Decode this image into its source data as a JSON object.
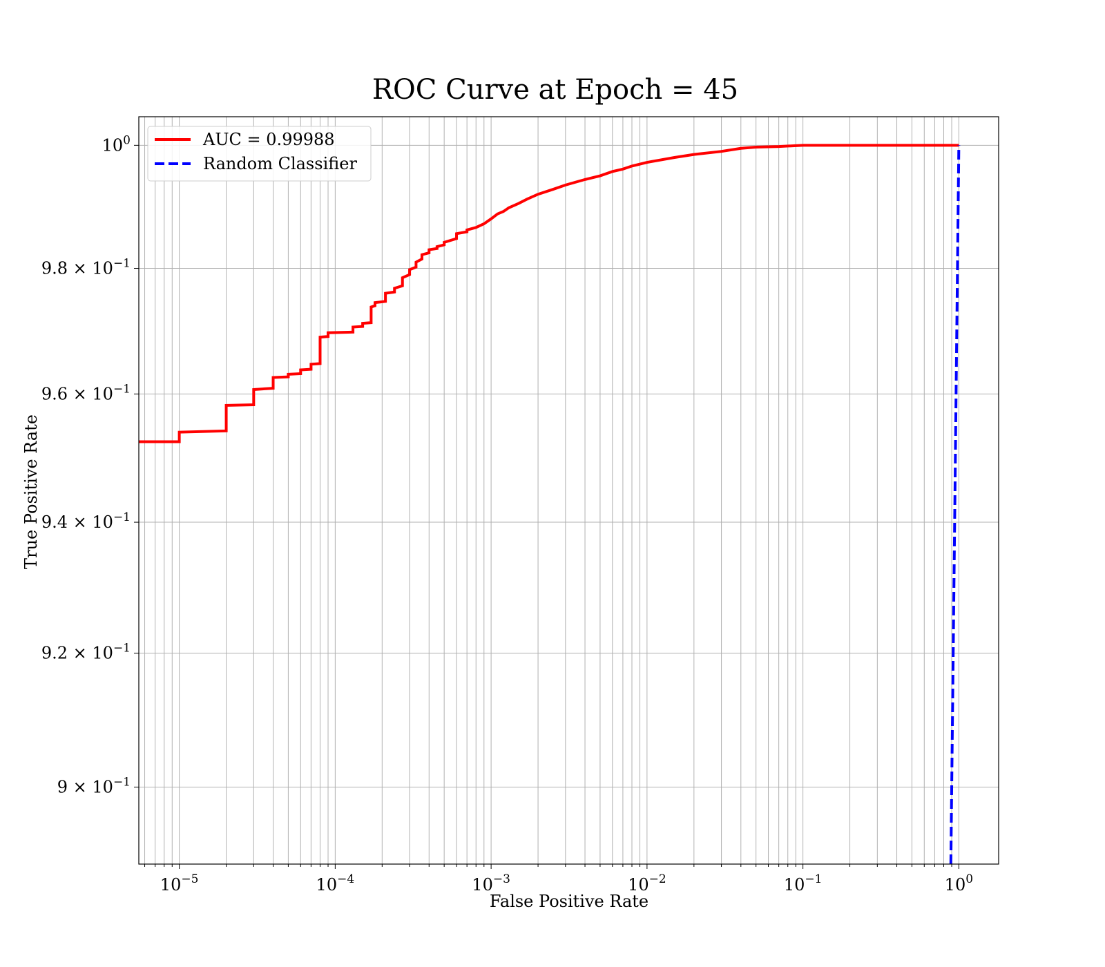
{
  "chart_data": {
    "type": "line",
    "title": "ROC Curve at Epoch = 45",
    "xlabel": "False Positive Rate",
    "ylabel": "True Positive Rate",
    "xscale": "log",
    "yscale": "log",
    "xlim": [
      5.5e-06,
      1.8
    ],
    "ylim": [
      0.8887,
      1.0047
    ],
    "grid": true,
    "legend_position": "top-left",
    "x_ticks": [
      {
        "value": 1e-05,
        "base": "10",
        "exp": "−5"
      },
      {
        "value": 0.0001,
        "base": "10",
        "exp": "−4"
      },
      {
        "value": 0.001,
        "base": "10",
        "exp": "−3"
      },
      {
        "value": 0.01,
        "base": "10",
        "exp": "−2"
      },
      {
        "value": 0.1,
        "base": "10",
        "exp": "−1"
      },
      {
        "value": 1,
        "base": "10",
        "exp": "0"
      }
    ],
    "y_ticks": [
      {
        "value": 1.0,
        "base": "10",
        "exp": "0"
      },
      {
        "value": 0.98,
        "base": "9.8 × 10",
        "exp": "−1"
      },
      {
        "value": 0.96,
        "base": "9.6 × 10",
        "exp": "−1"
      },
      {
        "value": 0.94,
        "base": "9.4 × 10",
        "exp": "−1"
      },
      {
        "value": 0.92,
        "base": "9.2 × 10",
        "exp": "−1"
      },
      {
        "value": 0.9,
        "base": "9 × 10",
        "exp": "−1"
      }
    ],
    "series": [
      {
        "name": "AUC = 0.99988",
        "color": "#ff0000",
        "style": "solid",
        "x": [
          5.5e-06,
          1e-05,
          1e-05,
          2e-05,
          2e-05,
          3e-05,
          3e-05,
          4e-05,
          4e-05,
          5e-05,
          5e-05,
          6e-05,
          6e-05,
          7e-05,
          7e-05,
          8e-05,
          8e-05,
          9e-05,
          9e-05,
          0.00013,
          0.00013,
          0.00015,
          0.00015,
          0.00017,
          0.00017,
          0.00018,
          0.00018,
          0.00021,
          0.00021,
          0.00024,
          0.00024,
          0.00027,
          0.00027,
          0.0003,
          0.0003,
          0.00033,
          0.00033,
          0.00036,
          0.00036,
          0.0004,
          0.0004,
          0.00045,
          0.00045,
          0.0005,
          0.0005,
          0.0006,
          0.0006,
          0.0007,
          0.0007,
          0.0008,
          0.0009,
          0.001,
          0.0011,
          0.0012,
          0.0013,
          0.0015,
          0.0017,
          0.002,
          0.0025,
          0.003,
          0.004,
          0.005,
          0.006,
          0.007,
          0.008,
          0.01,
          0.015,
          0.02,
          0.03,
          0.04,
          0.05,
          0.07,
          0.1,
          1.0
        ],
        "y": [
          0.9525,
          0.9525,
          0.954,
          0.9542,
          0.9582,
          0.9583,
          0.9607,
          0.9609,
          0.9626,
          0.9627,
          0.9631,
          0.9632,
          0.9638,
          0.9639,
          0.9647,
          0.9648,
          0.969,
          0.9691,
          0.9697,
          0.9698,
          0.9706,
          0.9707,
          0.9712,
          0.9713,
          0.9738,
          0.974,
          0.9745,
          0.9747,
          0.976,
          0.9762,
          0.9768,
          0.9772,
          0.9785,
          0.979,
          0.9798,
          0.9802,
          0.981,
          0.9815,
          0.9822,
          0.9825,
          0.983,
          0.9832,
          0.9835,
          0.9838,
          0.9842,
          0.9848,
          0.9856,
          0.9859,
          0.9862,
          0.9866,
          0.9872,
          0.988,
          0.9888,
          0.9892,
          0.9898,
          0.9905,
          0.9912,
          0.992,
          0.9928,
          0.9935,
          0.9944,
          0.995,
          0.9957,
          0.9961,
          0.9966,
          0.9972,
          0.998,
          0.9985,
          0.999,
          0.9995,
          0.9997,
          0.9998,
          1.0,
          1.0
        ]
      },
      {
        "name": "Random Classifier",
        "color": "#0000ff",
        "style": "dashed",
        "x": [
          0.8887,
          1.0
        ],
        "y": [
          0.8887,
          1.0
        ]
      }
    ]
  }
}
